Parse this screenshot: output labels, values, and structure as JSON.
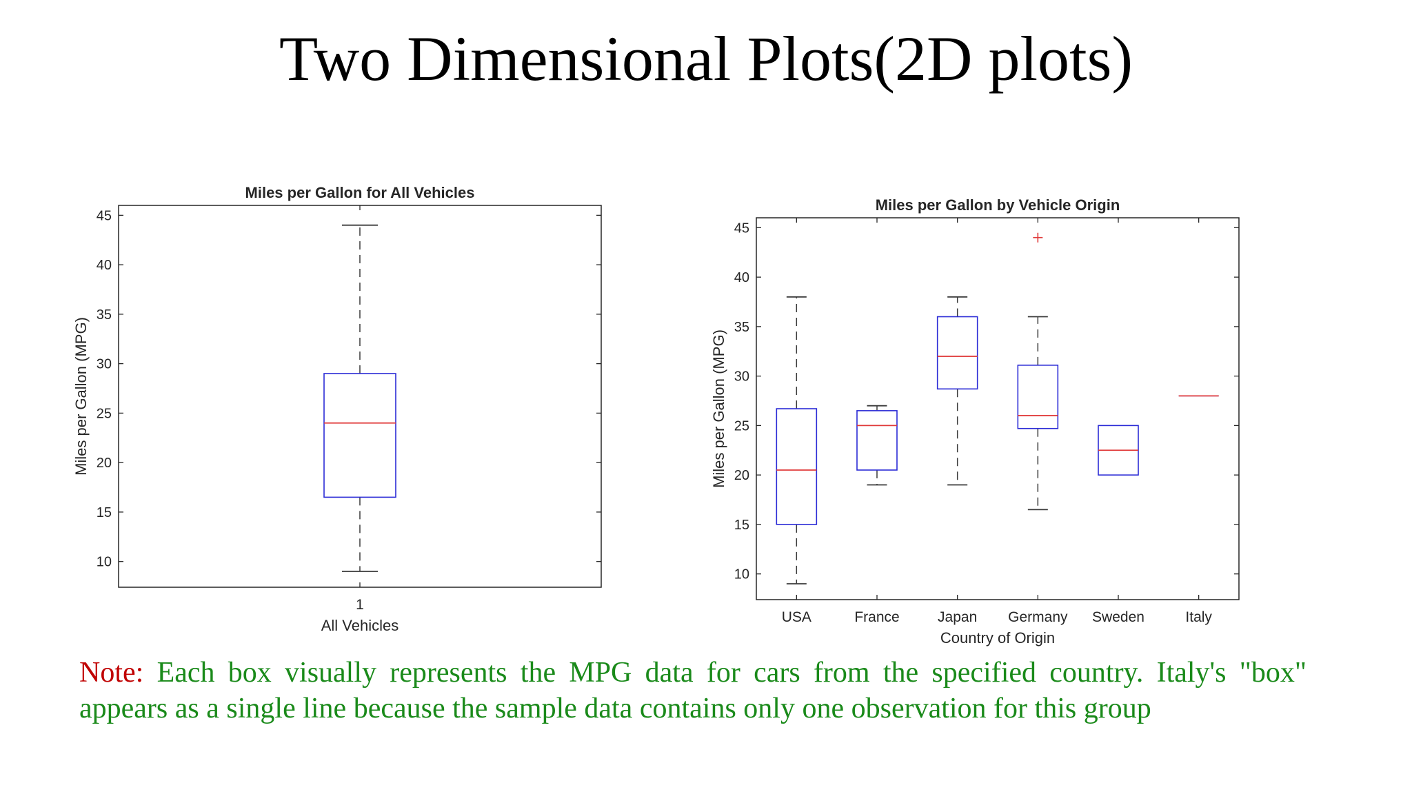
{
  "slide": {
    "title": "Two Dimensional Plots(2D plots)",
    "note_label": "Note:",
    "note_text": "Each box visually represents the MPG data for cars from the specified country. Italy's \"box\" appears as a single line because the sample data contains only one observation for this group"
  },
  "colors": {
    "box": "#2b2bd6",
    "median": "#e03a3a",
    "whisker": "#3a3a3a",
    "outlier": "#e03a3a"
  },
  "chart_data": [
    {
      "type": "box",
      "title": "Miles per Gallon for All Vehicles",
      "xlabel": "All Vehicles",
      "ylabel": "Miles per Gallon (MPG)",
      "ylim": [
        7.4,
        46
      ],
      "yticks": [
        10,
        15,
        20,
        25,
        30,
        35,
        40,
        45
      ],
      "categories": [
        "1"
      ],
      "boxes": [
        {
          "min": 9,
          "q1": 16.5,
          "median": 24,
          "q3": 29,
          "max": 44,
          "outliers": []
        }
      ]
    },
    {
      "type": "box",
      "title": "Miles per Gallon by Vehicle Origin",
      "xlabel": "Country of Origin",
      "ylabel": "Miles per Gallon (MPG)",
      "ylim": [
        7.4,
        46
      ],
      "yticks": [
        10,
        15,
        20,
        25,
        30,
        35,
        40,
        45
      ],
      "categories": [
        "USA",
        "France",
        "Japan",
        "Germany",
        "Sweden",
        "Italy"
      ],
      "boxes": [
        {
          "min": 9,
          "q1": 15,
          "median": 20.5,
          "q3": 26.7,
          "max": 38,
          "outliers": []
        },
        {
          "min": 19,
          "q1": 20.5,
          "median": 25,
          "q3": 26.5,
          "max": 27,
          "outliers": []
        },
        {
          "min": 19,
          "q1": 28.7,
          "median": 32,
          "q3": 36,
          "max": 38,
          "outliers": []
        },
        {
          "min": 16.5,
          "q1": 24.7,
          "median": 26,
          "q3": 31.1,
          "max": 36,
          "outliers": [
            44
          ]
        },
        {
          "min": 20,
          "q1": 20,
          "median": 22.5,
          "q3": 25,
          "max": 25,
          "outliers": []
        },
        {
          "min": 28,
          "q1": 28,
          "median": 28,
          "q3": 28,
          "max": 28,
          "outliers": []
        }
      ]
    }
  ]
}
